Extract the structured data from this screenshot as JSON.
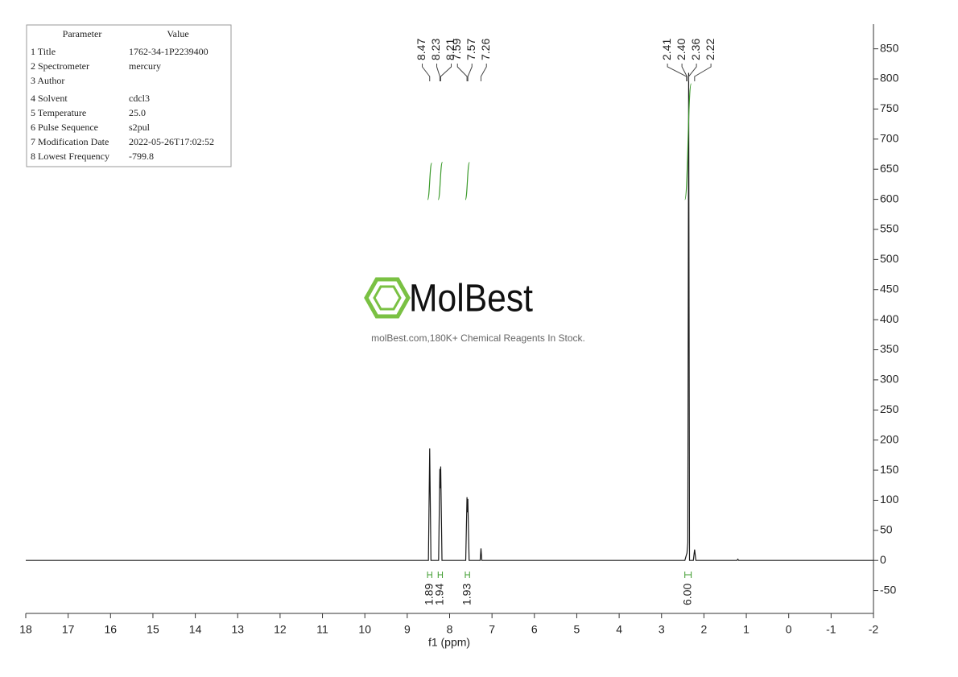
{
  "chart_data": {
    "type": "nmr",
    "xlabel": "f1 (ppm)",
    "xlim": [
      18,
      -2
    ],
    "xticks": [
      18,
      17,
      16,
      15,
      14,
      13,
      12,
      11,
      10,
      9,
      8,
      7,
      6,
      5,
      4,
      3,
      2,
      1,
      0,
      -1,
      -2
    ],
    "ylim": [
      -88,
      891
    ],
    "yticks": [
      -50,
      0,
      50,
      100,
      150,
      200,
      250,
      300,
      350,
      400,
      450,
      500,
      550,
      600,
      650,
      700,
      750,
      800,
      850
    ],
    "x": [
      18,
      8.5,
      8.47,
      8.44,
      8.26,
      8.23,
      8.22,
      8.21,
      8.18,
      7.62,
      7.59,
      7.58,
      7.57,
      7.54,
      7.28,
      7.26,
      7.24,
      2.45,
      2.41,
      2.4,
      2.38,
      2.36,
      2.34,
      2.25,
      2.22,
      2.19,
      1.22,
      1.2,
      1.18,
      -2
    ],
    "values": [
      0,
      0,
      186,
      0,
      0,
      152,
      120,
      156,
      0,
      0,
      105,
      80,
      102,
      0,
      0,
      20,
      0,
      0,
      10,
      12,
      30,
      810,
      0,
      0,
      18,
      0,
      0,
      2,
      0,
      0
    ],
    "color": "#1a1a1a",
    "integral_color": "#3c9b2c",
    "integrals": [
      {
        "range": [
          8.52,
          8.42
        ],
        "value": 1.89
      },
      {
        "range": [
          8.27,
          8.17
        ],
        "value": 1.94
      },
      {
        "range": [
          7.63,
          7.53
        ],
        "value": 1.93
      },
      {
        "range": [
          2.45,
          2.3
        ],
        "value": {
          "value": 6,
          "label": "6.00"
        }
      }
    ],
    "peak_labels": [
      [
        8.47,
        8.23,
        8.21
      ],
      [
        7.59,
        7.57,
        7.26
      ],
      [
        2.41,
        {
          "value": 2.4,
          "label": "2.40"
        },
        2.36,
        2.22
      ]
    ]
  },
  "parameter_table": {
    "header": [
      "Parameter",
      "Value"
    ],
    "rows": [
      [
        "1 Title",
        "1762-34-1P2239400"
      ],
      [
        "2 Spectrometer",
        "mercury"
      ],
      [
        "3 Author"
      ],
      [
        "4 Solvent",
        "cdcl3"
      ],
      [
        "5 Temperature",
        "25.0"
      ],
      [
        "6 Pulse Sequence",
        "s2pul"
      ],
      [
        "7 Modification Date",
        "2022-05-26T17:02:52"
      ],
      [
        "8 Lowest Frequency",
        "-799.8"
      ]
    ]
  },
  "watermark": {
    "brand": "MolBest",
    "tagline": "molBest.com,180K+ Chemical Reagents In Stock."
  }
}
